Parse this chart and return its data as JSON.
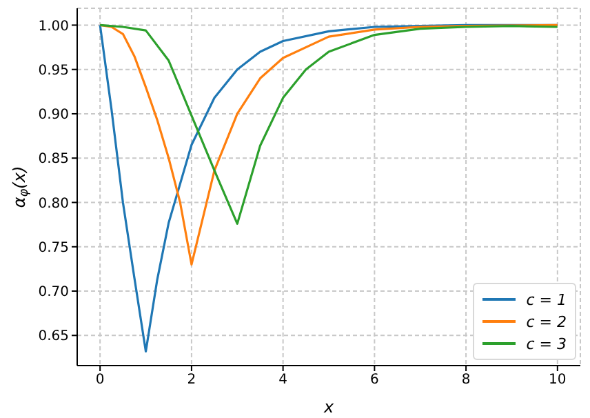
{
  "chart_data": {
    "type": "line",
    "xlabel": "x",
    "ylabel": "α$_{φ}$(x)",
    "xlim": [
      -0.5,
      10.5
    ],
    "xticks": [
      0,
      2,
      4,
      6,
      8,
      10
    ],
    "ylim": [
      0.616,
      1.019
    ],
    "yticks": [
      0.65,
      {
        "value": 0.7,
        "label": "0.70"
      },
      0.75,
      {
        "value": 0.8,
        "label": "0.80"
      },
      0.85,
      {
        "value": 0.9,
        "label": "0.90"
      },
      0.95,
      {
        "value": 1,
        "label": "1.00"
      }
    ],
    "grid": true,
    "legend": "bottom right",
    "marker": "none",
    "line_style": "solid",
    "series": [
      {
        "name": "c = 1",
        "color": "#1f77b4",
        "x": [
          0,
          0.25,
          0.5,
          0.75,
          1,
          1.25,
          1.5,
          2,
          2.5,
          3,
          3.5,
          4,
          5,
          6,
          7,
          8,
          10
        ],
        "values": [
          1,
          0.905,
          0.8,
          0.715,
          0.632,
          0.713,
          0.777,
          0.865,
          0.918,
          0.95,
          0.97,
          0.982,
          0.993,
          0.998,
          0.999,
          1,
          1
        ]
      },
      {
        "name": "c = 2",
        "color": "#ff7f0e",
        "x": [
          0,
          0.25,
          0.5,
          0.75,
          1,
          1.25,
          1.5,
          1.75,
          2,
          2.5,
          3,
          3.5,
          4,
          5,
          6,
          7,
          8,
          10
        ],
        "values": [
          1,
          0.998,
          0.99,
          0.965,
          0.93,
          0.893,
          0.85,
          0.8,
          0.73,
          0.836,
          0.9,
          0.94,
          0.963,
          0.987,
          0.995,
          0.998,
          0.999,
          1
        ]
      },
      {
        "name": "c = 3",
        "color": "#2ca02c",
        "x": [
          0,
          0.5,
          1,
          1.5,
          2,
          2.5,
          3,
          3.5,
          4,
          4.5,
          5,
          6,
          7,
          8,
          9,
          10
        ],
        "values": [
          1,
          0.998,
          0.994,
          0.96,
          0.898,
          0.836,
          0.776,
          0.864,
          0.918,
          0.95,
          0.97,
          0.989,
          0.996,
          0.998,
          0.999,
          0.998
        ]
      }
    ]
  }
}
